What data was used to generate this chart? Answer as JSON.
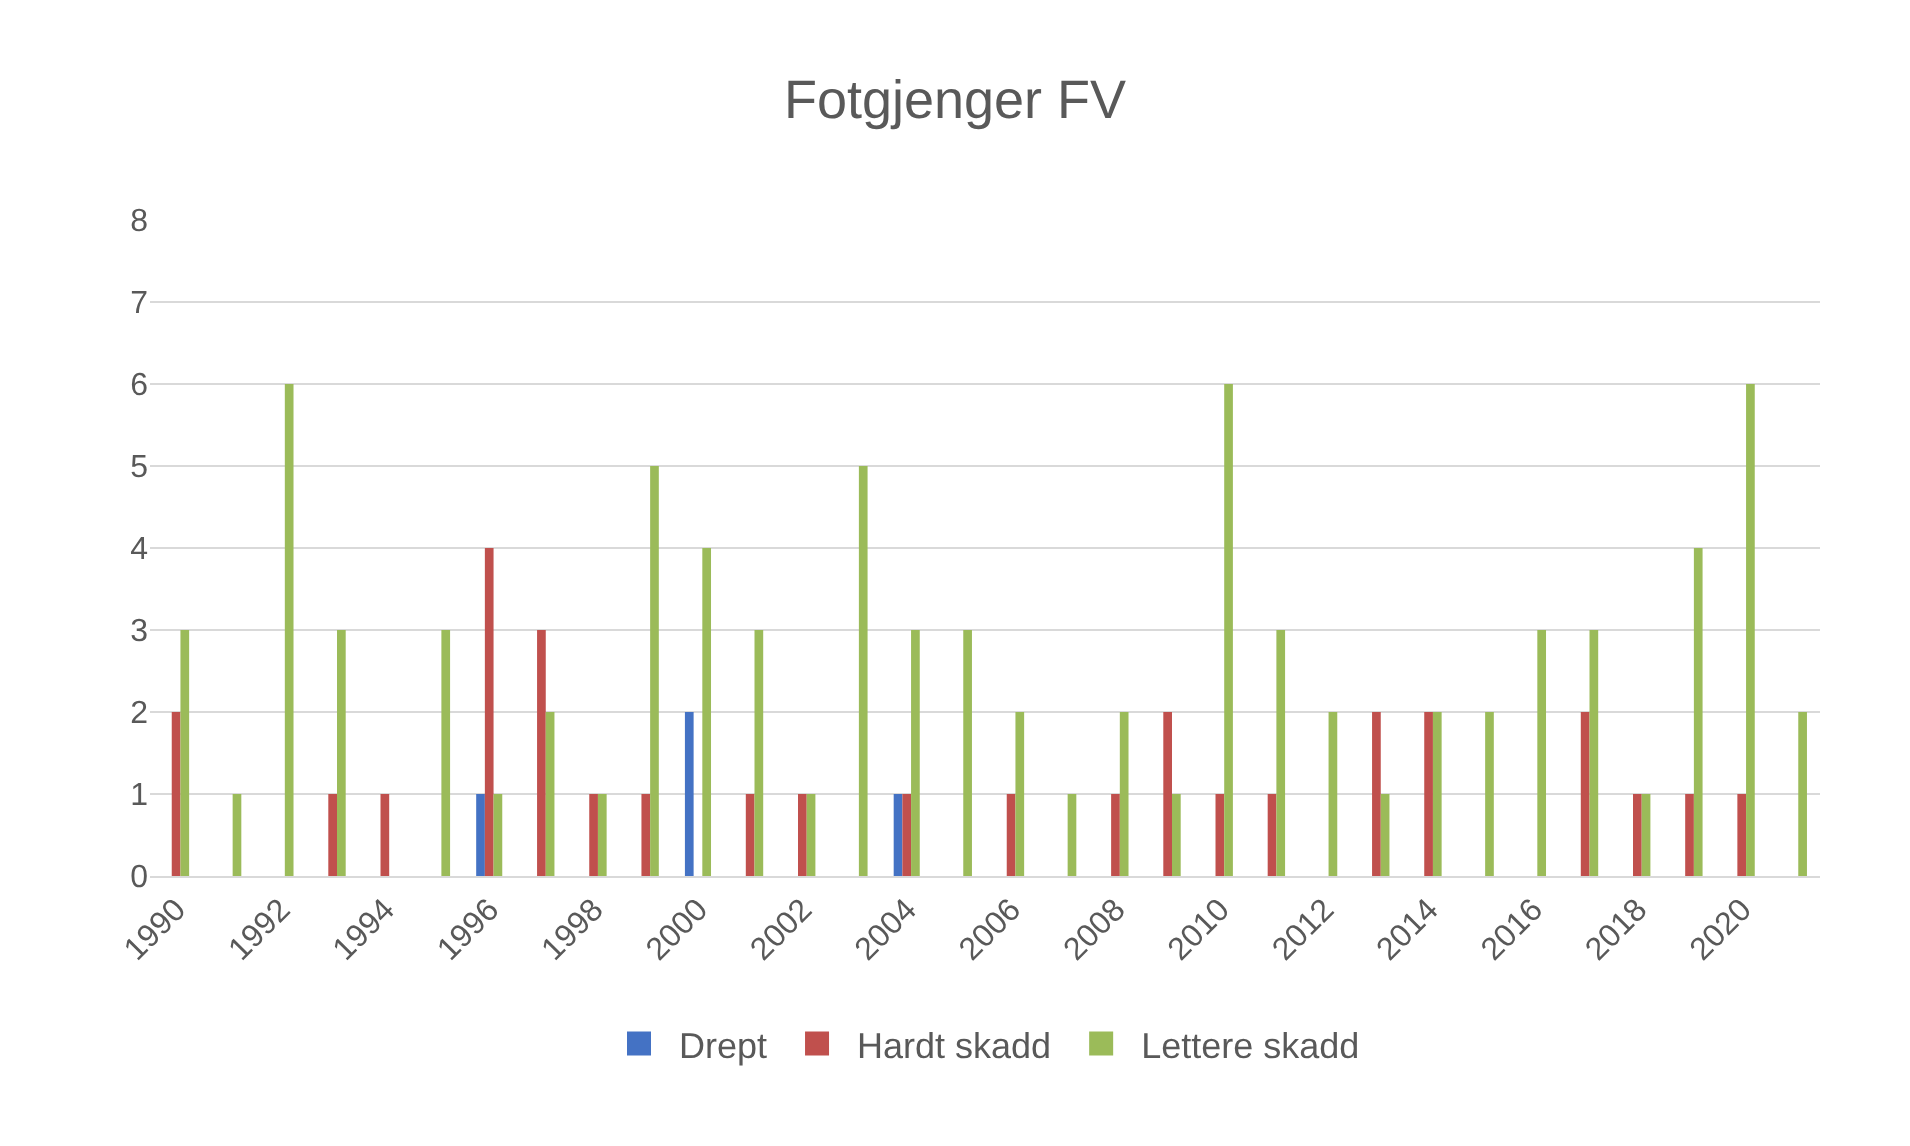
{
  "chart_data": {
    "type": "bar",
    "title": "Fotgjenger FV",
    "categories": [
      "1990",
      null,
      "1992",
      null,
      "1994",
      null,
      "1996",
      null,
      "1998",
      null,
      "2000",
      null,
      "2002",
      null,
      "2004",
      null,
      "2006",
      null,
      "2008",
      null,
      "2010",
      null,
      "2012",
      null,
      "2014",
      null,
      "2016",
      null,
      "2018",
      null,
      "2020",
      null
    ],
    "series": [
      {
        "name": "Drept",
        "color": "#4472c4",
        "values": [
          0,
          0,
          0,
          0,
          0,
          0,
          1,
          0,
          0,
          0,
          2,
          0,
          0,
          0,
          1,
          0,
          0,
          0,
          0,
          0,
          0,
          0,
          0,
          0,
          0,
          0,
          0,
          0,
          0,
          0,
          0,
          0
        ]
      },
      {
        "name": "Hardt skadd",
        "color": "#c0504d",
        "values": [
          2,
          0,
          0,
          1,
          1,
          0,
          4,
          3,
          1,
          1,
          0,
          1,
          1,
          0,
          1,
          0,
          1,
          0,
          1,
          2,
          1,
          1,
          0,
          2,
          2,
          0,
          0,
          2,
          1,
          1,
          1,
          0
        ]
      },
      {
        "name": "Lettere skadd",
        "color": "#9bbb59",
        "values": [
          3,
          1,
          6,
          3,
          0,
          3,
          1,
          2,
          1,
          5,
          4,
          3,
          1,
          5,
          3,
          3,
          2,
          1,
          2,
          1,
          6,
          3,
          2,
          1,
          2,
          2,
          3,
          3,
          1,
          4,
          6,
          2
        ]
      }
    ],
    "ylim": [
      0,
      8
    ],
    "yticks": [
      0,
      1,
      2,
      3,
      4,
      5,
      6,
      7,
      8
    ],
    "grid": "y",
    "legend": "bottom"
  }
}
